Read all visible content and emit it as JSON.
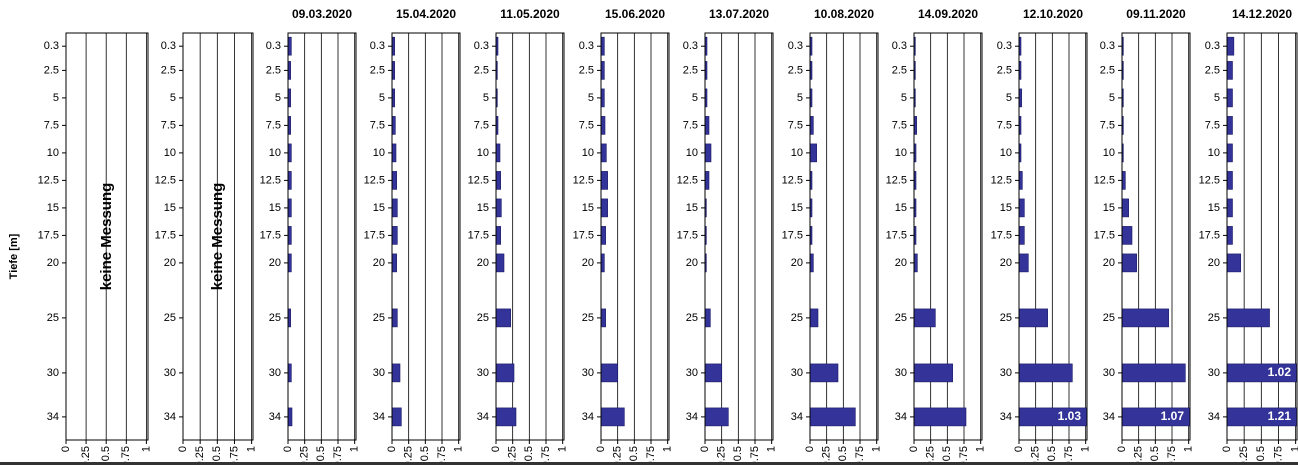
{
  "chart_data": [
    {
      "type": "bar",
      "ylabel": "Tiefe [m]",
      "annotation": "keine Messung",
      "categories": [
        0.3,
        2.5,
        5,
        7.5,
        10,
        12.5,
        15,
        17.5,
        20,
        25,
        30,
        34
      ],
      "xlim": [
        0,
        1.02
      ],
      "xticks": [
        0,
        0.25,
        0.5,
        0.75,
        1
      ],
      "ylim": [
        -0.9,
        36.1
      ],
      "y_inverted": true,
      "grid": true,
      "color": "#333399"
    },
    {
      "type": "bar",
      "annotation": "keine Messung",
      "categories": [
        0.3,
        2.5,
        5,
        7.5,
        10,
        12.5,
        15,
        17.5,
        20,
        25,
        30,
        34
      ],
      "xlim": [
        0,
        1.02
      ],
      "xticks": [
        0,
        0.25,
        0.5,
        0.75,
        1
      ],
      "ylim": [
        -0.9,
        36.1
      ],
      "y_inverted": true,
      "grid": true,
      "color": "#333399"
    },
    {
      "type": "bar",
      "title": "09.03.2020",
      "categories": [
        0.3,
        2.5,
        5,
        7.5,
        10,
        12.5,
        15,
        17.5,
        20,
        25,
        30,
        34
      ],
      "values": [
        0.05,
        0.04,
        0.04,
        0.04,
        0.05,
        0.05,
        0.05,
        0.05,
        0.05,
        0.04,
        0.05,
        0.06
      ],
      "xlim": [
        0,
        1.02
      ],
      "xticks": [
        0,
        0.25,
        0.5,
        0.75,
        1
      ],
      "ylim": [
        -0.9,
        36.1
      ],
      "y_inverted": true,
      "grid": true,
      "color": "#333399"
    },
    {
      "type": "bar",
      "title": "15.04.2020",
      "categories": [
        0.3,
        2.5,
        5,
        7.5,
        10,
        12.5,
        15,
        17.5,
        20,
        25,
        30,
        34
      ],
      "values": [
        0.04,
        0.04,
        0.04,
        0.05,
        0.06,
        0.07,
        0.08,
        0.08,
        0.07,
        0.08,
        0.12,
        0.14
      ],
      "xlim": [
        0,
        1.02
      ],
      "xticks": [
        0,
        0.25,
        0.5,
        0.75,
        1
      ],
      "ylim": [
        -0.9,
        36.1
      ],
      "y_inverted": true,
      "grid": true,
      "color": "#333399"
    },
    {
      "type": "bar",
      "title": "11.05.2020",
      "categories": [
        0.3,
        2.5,
        5,
        7.5,
        10,
        12.5,
        15,
        17.5,
        20,
        25,
        30,
        34
      ],
      "values": [
        0.03,
        0.02,
        0.02,
        0.03,
        0.06,
        0.07,
        0.08,
        0.07,
        0.12,
        0.22,
        0.27,
        0.3
      ],
      "xlim": [
        0,
        1.02
      ],
      "xticks": [
        0,
        0.25,
        0.5,
        0.75,
        1
      ],
      "ylim": [
        -0.9,
        36.1
      ],
      "y_inverted": true,
      "grid": true,
      "color": "#333399"
    },
    {
      "type": "bar",
      "title": "15.06.2020",
      "categories": [
        0.3,
        2.5,
        5,
        7.5,
        10,
        12.5,
        15,
        17.5,
        20,
        25,
        30,
        34
      ],
      "values": [
        0.05,
        0.05,
        0.05,
        0.06,
        0.08,
        0.1,
        0.1,
        0.07,
        0.05,
        0.07,
        0.25,
        0.35
      ],
      "xlim": [
        0,
        1.02
      ],
      "xticks": [
        0,
        0.25,
        0.5,
        0.75,
        1
      ],
      "ylim": [
        -0.9,
        36.1
      ],
      "y_inverted": true,
      "grid": true,
      "color": "#333399"
    },
    {
      "type": "bar",
      "title": "13.07.2020",
      "categories": [
        0.3,
        2.5,
        5,
        7.5,
        10,
        12.5,
        15,
        17.5,
        20,
        25,
        30,
        34
      ],
      "values": [
        0.03,
        0.03,
        0.03,
        0.06,
        0.09,
        0.06,
        0.02,
        0.02,
        0.02,
        0.08,
        0.25,
        0.35
      ],
      "xlim": [
        0,
        1.02
      ],
      "xticks": [
        0,
        0.25,
        0.5,
        0.75,
        1
      ],
      "ylim": [
        -0.9,
        36.1
      ],
      "y_inverted": true,
      "grid": true,
      "color": "#333399"
    },
    {
      "type": "bar",
      "title": "10.08.2020",
      "categories": [
        0.3,
        2.5,
        5,
        7.5,
        10,
        12.5,
        15,
        17.5,
        20,
        25,
        30,
        34
      ],
      "values": [
        0.03,
        0.03,
        0.03,
        0.05,
        0.1,
        0.03,
        0.03,
        0.03,
        0.05,
        0.12,
        0.42,
        0.68
      ],
      "xlim": [
        0,
        1.02
      ],
      "xticks": [
        0,
        0.25,
        0.5,
        0.75,
        1
      ],
      "ylim": [
        -0.9,
        36.1
      ],
      "y_inverted": true,
      "grid": true,
      "color": "#333399"
    },
    {
      "type": "bar",
      "title": "14.09.2020",
      "categories": [
        0.3,
        2.5,
        5,
        7.5,
        10,
        12.5,
        15,
        17.5,
        20,
        25,
        30,
        34
      ],
      "values": [
        0.02,
        0.02,
        0.02,
        0.04,
        0.03,
        0.03,
        0.03,
        0.03,
        0.05,
        0.32,
        0.58,
        0.78
      ],
      "xlim": [
        0,
        1.02
      ],
      "xticks": [
        0,
        0.25,
        0.5,
        0.75,
        1
      ],
      "ylim": [
        -0.9,
        36.1
      ],
      "y_inverted": true,
      "grid": true,
      "color": "#333399"
    },
    {
      "type": "bar",
      "title": "12.10.2020",
      "categories": [
        0.3,
        2.5,
        5,
        7.5,
        10,
        12.5,
        15,
        17.5,
        20,
        25,
        30,
        34
      ],
      "values": [
        0.03,
        0.03,
        0.04,
        0.03,
        0.03,
        0.05,
        0.08,
        0.08,
        0.14,
        0.43,
        0.8,
        1.03
      ],
      "value_labels": [
        null,
        null,
        null,
        null,
        null,
        null,
        null,
        null,
        null,
        null,
        null,
        "1.03"
      ],
      "xlim": [
        0,
        1.02
      ],
      "xticks": [
        0,
        0.25,
        0.5,
        0.75,
        1
      ],
      "ylim": [
        -0.9,
        36.1
      ],
      "y_inverted": true,
      "grid": true,
      "color": "#333399"
    },
    {
      "type": "bar",
      "title": "09.11.2020",
      "categories": [
        0.3,
        2.5,
        5,
        7.5,
        10,
        12.5,
        15,
        17.5,
        20,
        25,
        30,
        34
      ],
      "values": [
        0.02,
        0.02,
        0.02,
        0.02,
        0.02,
        0.05,
        0.1,
        0.15,
        0.22,
        0.7,
        0.95,
        1.07
      ],
      "value_labels": [
        null,
        null,
        null,
        null,
        null,
        null,
        null,
        null,
        null,
        null,
        null,
        "1.07"
      ],
      "xlim": [
        0,
        1.02
      ],
      "xticks": [
        0,
        0.25,
        0.5,
        0.75,
        1
      ],
      "ylim": [
        -0.9,
        36.1
      ],
      "y_inverted": true,
      "grid": true,
      "color": "#333399"
    },
    {
      "type": "bar",
      "title": "14.12.2020",
      "categories": [
        0.3,
        2.5,
        5,
        7.5,
        10,
        12.5,
        15,
        17.5,
        20,
        25,
        30,
        34
      ],
      "values": [
        0.1,
        0.08,
        0.08,
        0.08,
        0.08,
        0.08,
        0.08,
        0.08,
        0.2,
        0.62,
        1.02,
        1.21
      ],
      "value_labels": [
        null,
        null,
        null,
        null,
        null,
        null,
        null,
        null,
        null,
        null,
        "1.02",
        "1.21"
      ],
      "xlim": [
        0,
        1.02
      ],
      "xticks": [
        0,
        0.25,
        0.5,
        0.75,
        1
      ],
      "ylim": [
        -0.9,
        36.1
      ],
      "y_inverted": true,
      "grid": true,
      "color": "#333399"
    }
  ]
}
